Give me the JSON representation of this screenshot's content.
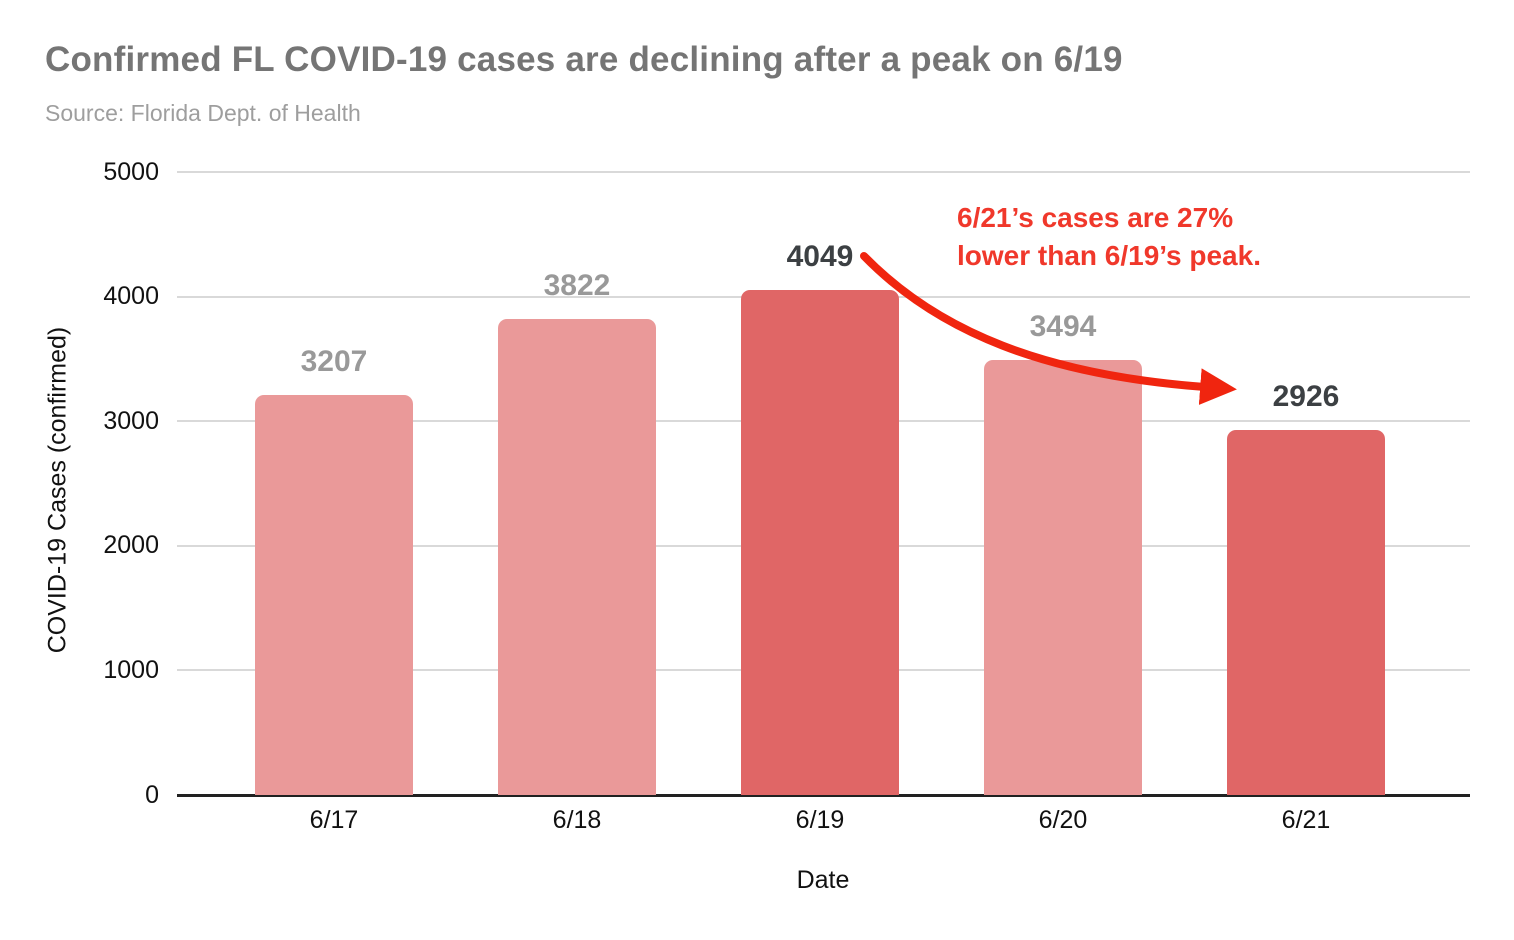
{
  "header": {
    "title": "Confirmed FL COVID-19 cases are declining after a peak on 6/19",
    "subtitle": "Source: Florida Dept. of Health"
  },
  "chart_data": {
    "type": "bar",
    "title": "Confirmed FL COVID-19 cases are declining after a peak on 6/19",
    "subtitle": "Source: Florida Dept. of Health",
    "categories": [
      "6/17",
      "6/18",
      "6/19",
      "6/20",
      "6/21"
    ],
    "values": [
      3207,
      3822,
      4049,
      3494,
      2926
    ],
    "bar_colors": [
      "#EA9999",
      "#EA9999",
      "#E06666",
      "#EA9999",
      "#E06666"
    ],
    "value_label_colors": [
      "#999999",
      "#999999",
      "#3C4043",
      "#999999",
      "#3C4043"
    ],
    "xlabel": "Date",
    "ylabel": "COVID-19 Cases (confirmed)",
    "ylim": [
      0,
      5000
    ],
    "yticks": [
      0,
      1000,
      2000,
      3000,
      4000,
      5000
    ],
    "grid": true,
    "legend": "none",
    "annotation": {
      "lines": [
        "6/21’s cases are 27%",
        "lower than 6/19’s peak."
      ],
      "color": "#F0382B",
      "arrow_color": "#F0250F"
    }
  },
  "colors": {
    "background": "#FFFFFF",
    "title_gray": "#757575",
    "subtitle_gray": "#9E9E9E",
    "gridline": "#D9D9D9",
    "baseline": "#212121",
    "bar_light": "#EA9999",
    "bar_dark": "#E06666"
  }
}
